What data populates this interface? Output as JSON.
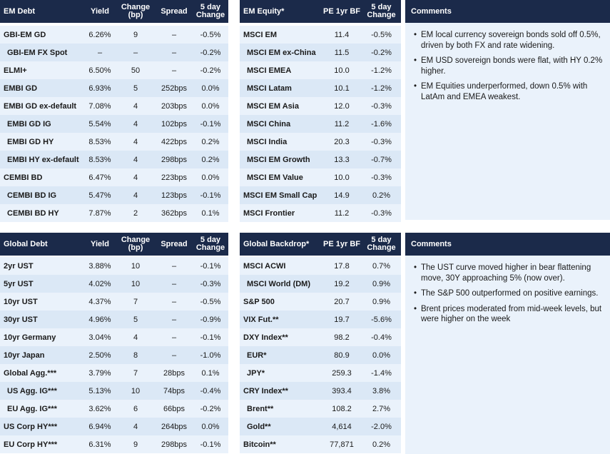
{
  "em_debt": {
    "headers": [
      "EM Debt",
      "Yield",
      "Change (bp)",
      "Spread",
      "5 day Change"
    ],
    "rows": [
      {
        "name": "GBI-EM GD",
        "indent": false,
        "yield": "6.26%",
        "change": "9",
        "spread": "–",
        "five_day": "-0.5%"
      },
      {
        "name": "GBI-EM FX Spot",
        "indent": true,
        "yield": "–",
        "change": "–",
        "spread": "–",
        "five_day": "-0.2%"
      },
      {
        "name": "ELMI+",
        "indent": false,
        "yield": "6.50%",
        "change": "50",
        "spread": "–",
        "five_day": "-0.2%"
      },
      {
        "name": "EMBI GD",
        "indent": false,
        "yield": "6.93%",
        "change": "5",
        "spread": "252bps",
        "five_day": "0.0%"
      },
      {
        "name": "EMBI GD ex-default",
        "indent": false,
        "yield": "7.08%",
        "change": "4",
        "spread": "203bps",
        "five_day": "0.0%"
      },
      {
        "name": "EMBI GD IG",
        "indent": true,
        "yield": "5.54%",
        "change": "4",
        "spread": "102bps",
        "five_day": "-0.1%"
      },
      {
        "name": "EMBI GD HY",
        "indent": true,
        "yield": "8.53%",
        "change": "4",
        "spread": "422bps",
        "five_day": "0.2%"
      },
      {
        "name": "EMBI HY ex-default",
        "indent": true,
        "yield": "8.53%",
        "change": "4",
        "spread": "298bps",
        "five_day": "0.2%"
      },
      {
        "name": "CEMBI BD",
        "indent": false,
        "yield": "6.47%",
        "change": "4",
        "spread": "223bps",
        "five_day": "0.0%"
      },
      {
        "name": "CEMBI BD IG",
        "indent": true,
        "yield": "5.47%",
        "change": "4",
        "spread": "123bps",
        "five_day": "-0.1%"
      },
      {
        "name": "CEMBI BD HY",
        "indent": true,
        "yield": "7.87%",
        "change": "2",
        "spread": "362bps",
        "five_day": "0.1%"
      }
    ]
  },
  "em_equity": {
    "headers": [
      "EM Equity*",
      "PE 1yr BF",
      "5 day Change"
    ],
    "rows": [
      {
        "name": "MSCI EM",
        "indent": false,
        "pe": "11.4",
        "five_day": "-0.5%"
      },
      {
        "name": "MSCI EM ex-China",
        "indent": true,
        "pe": "11.5",
        "five_day": "-0.2%"
      },
      {
        "name": "MSCI EMEA",
        "indent": true,
        "pe": "10.0",
        "five_day": "-1.2%"
      },
      {
        "name": "MSCI Latam",
        "indent": true,
        "pe": "10.1",
        "five_day": "-1.2%"
      },
      {
        "name": "MSCI EM Asia",
        "indent": true,
        "pe": "12.0",
        "five_day": "-0.3%"
      },
      {
        "name": "MSCI China",
        "indent": true,
        "pe": "11.2",
        "five_day": "-1.6%"
      },
      {
        "name": "MSCI India",
        "indent": true,
        "pe": "20.3",
        "five_day": "-0.3%"
      },
      {
        "name": "MSCI EM Growth",
        "indent": true,
        "pe": "13.3",
        "five_day": "-0.7%"
      },
      {
        "name": "MSCI EM Value",
        "indent": true,
        "pe": "10.0",
        "five_day": "-0.3%"
      },
      {
        "name": "MSCI EM Small Cap",
        "indent": false,
        "pe": "14.9",
        "five_day": "0.2%"
      },
      {
        "name": "MSCI Frontier",
        "indent": false,
        "pe": "11.2",
        "five_day": "-0.3%"
      }
    ]
  },
  "comments_top": {
    "title": "Comments",
    "items": [
      "EM local currency sovereign bonds sold off 0.5%, driven by both FX and rate widening.",
      "EM USD sovereign bonds were flat, with HY 0.2% higher.",
      "EM Equities underperformed, down 0.5% with LatAm and EMEA weakest."
    ]
  },
  "global_debt": {
    "headers": [
      "Global Debt",
      "Yield",
      "Change (bp)",
      "Spread",
      "5 day Change"
    ],
    "rows": [
      {
        "name": "2yr UST",
        "indent": false,
        "yield": "3.88%",
        "change": "10",
        "spread": "–",
        "five_day": "-0.1%"
      },
      {
        "name": "5yr UST",
        "indent": false,
        "yield": "4.02%",
        "change": "10",
        "spread": "–",
        "five_day": "-0.3%"
      },
      {
        "name": "10yr UST",
        "indent": false,
        "yield": "4.37%",
        "change": "7",
        "spread": "–",
        "five_day": "-0.5%"
      },
      {
        "name": "30yr UST",
        "indent": false,
        "yield": "4.96%",
        "change": "5",
        "spread": "–",
        "five_day": "-0.9%"
      },
      {
        "name": "10yr Germany",
        "indent": false,
        "yield": "3.04%",
        "change": "4",
        "spread": "–",
        "five_day": "-0.1%"
      },
      {
        "name": "10yr Japan",
        "indent": false,
        "yield": "2.50%",
        "change": "8",
        "spread": "–",
        "five_day": "-1.0%"
      },
      {
        "name": "Global Agg.***",
        "indent": false,
        "yield": "3.79%",
        "change": "7",
        "spread": "28bps",
        "five_day": "0.1%"
      },
      {
        "name": "US Agg. IG***",
        "indent": true,
        "yield": "5.13%",
        "change": "10",
        "spread": "74bps",
        "five_day": "-0.4%"
      },
      {
        "name": "EU Agg. IG***",
        "indent": true,
        "yield": "3.62%",
        "change": "6",
        "spread": "66bps",
        "five_day": "-0.2%"
      },
      {
        "name": "US Corp HY***",
        "indent": false,
        "yield": "6.94%",
        "change": "4",
        "spread": "264bps",
        "five_day": "0.0%"
      },
      {
        "name": "EU Corp HY***",
        "indent": false,
        "yield": "6.31%",
        "change": "9",
        "spread": "298bps",
        "five_day": "-0.1%"
      }
    ]
  },
  "global_backdrop": {
    "headers": [
      "Global Backdrop*",
      "PE 1yr BF",
      "5 day Change"
    ],
    "rows": [
      {
        "name": "MSCI ACWI",
        "indent": false,
        "pe": "17.8",
        "five_day": "0.7%"
      },
      {
        "name": "MSCI World (DM)",
        "indent": true,
        "pe": "19.2",
        "five_day": "0.9%"
      },
      {
        "name": "S&P 500",
        "indent": false,
        "pe": "20.7",
        "five_day": "0.9%"
      },
      {
        "name": "VIX Fut.**",
        "indent": false,
        "pe": "19.7",
        "five_day": "-5.6%"
      },
      {
        "name": "DXY Index**",
        "indent": false,
        "pe": "98.2",
        "five_day": "-0.4%"
      },
      {
        "name": "EUR*",
        "indent": true,
        "pe": "80.9",
        "five_day": "0.0%"
      },
      {
        "name": "JPY*",
        "indent": true,
        "pe": "259.3",
        "five_day": "-1.4%"
      },
      {
        "name": "CRY Index**",
        "indent": false,
        "pe": "393.4",
        "five_day": "3.8%"
      },
      {
        "name": "Brent**",
        "indent": true,
        "pe": "108.2",
        "five_day": "2.7%"
      },
      {
        "name": "Gold**",
        "indent": true,
        "pe": "4,614",
        "five_day": "-2.0%"
      },
      {
        "name": "Bitcoin**",
        "indent": false,
        "pe": "77,871",
        "five_day": "0.2%"
      }
    ]
  },
  "comments_bottom": {
    "title": "Comments",
    "items": [
      "The UST curve moved higher in bear flattening move, 30Y approaching 5% (now over).",
      "The S&P 500 outperformed on positive earnings.",
      "Brent prices moderated from mid-week levels, but were higher on the week"
    ]
  }
}
